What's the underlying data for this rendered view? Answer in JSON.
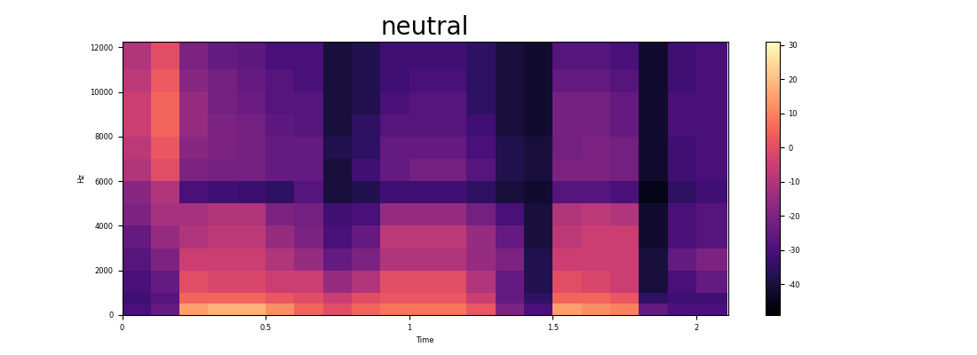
{
  "chart_data": {
    "type": "heatmap",
    "title": "neutral",
    "x_label": "Time",
    "y_label": "Hz",
    "x_edges": [
      0,
      0.1,
      0.2,
      0.3,
      0.4,
      0.5,
      0.6,
      0.7,
      0.8,
      0.9,
      1.0,
      1.1,
      1.2,
      1.3,
      1.4,
      1.5,
      1.6,
      1.7,
      1.8,
      1.9,
      2.0,
      2.11
    ],
    "y_edges": [
      0,
      500,
      1000,
      2000,
      3000,
      4000,
      5000,
      6000,
      7000,
      8000,
      9000,
      10000,
      11000,
      12000,
      12250
    ],
    "cells": [
      [
        -30,
        -25,
        15,
        18,
        18,
        12,
        5,
        0,
        5,
        8,
        8,
        8,
        2,
        -20,
        -30,
        15,
        12,
        10,
        -25,
        -30,
        -30
      ],
      [
        -32,
        -28,
        5,
        5,
        5,
        2,
        0,
        -5,
        0,
        2,
        2,
        2,
        -5,
        -25,
        -35,
        5,
        5,
        2,
        -35,
        -32,
        -32
      ],
      [
        -30,
        -25,
        0,
        -2,
        -2,
        -5,
        -5,
        -15,
        -10,
        0,
        0,
        0,
        -10,
        -25,
        -38,
        0,
        -2,
        -5,
        -40,
        -30,
        -25
      ],
      [
        -28,
        -20,
        -5,
        -5,
        -5,
        -10,
        -15,
        -25,
        -20,
        -10,
        -10,
        -10,
        -15,
        -20,
        -38,
        -5,
        -5,
        -5,
        -40,
        -25,
        -20
      ],
      [
        -25,
        -15,
        -10,
        -8,
        -8,
        -15,
        -20,
        -30,
        -25,
        -8,
        -8,
        -8,
        -15,
        -25,
        -40,
        -8,
        -5,
        -5,
        -42,
        -30,
        -28
      ],
      [
        -20,
        -12,
        -12,
        -10,
        -10,
        -20,
        -22,
        -32,
        -30,
        -15,
        -15,
        -15,
        -22,
        -30,
        -40,
        -10,
        -8,
        -10,
        -42,
        -30,
        -28
      ],
      [
        -18,
        -10,
        -30,
        -32,
        -33,
        -35,
        -28,
        -40,
        -38,
        -32,
        -32,
        -32,
        -35,
        -40,
        -42,
        -28,
        -28,
        -30,
        -45,
        -35,
        -32
      ],
      [
        -10,
        0,
        -20,
        -22,
        -22,
        -25,
        -25,
        -40,
        -32,
        -25,
        -22,
        -22,
        -28,
        -38,
        -40,
        -20,
        -20,
        -22,
        -42,
        -32,
        -30
      ],
      [
        -8,
        2,
        -18,
        -20,
        -22,
        -25,
        -25,
        -38,
        -35,
        -25,
        -25,
        -25,
        -30,
        -38,
        -40,
        -22,
        -20,
        -22,
        -42,
        -32,
        -30
      ],
      [
        -5,
        5,
        -15,
        -20,
        -22,
        -26,
        -28,
        -40,
        -35,
        -28,
        -28,
        -28,
        -32,
        -40,
        -42,
        -22,
        -22,
        -25,
        -42,
        -30,
        -30
      ],
      [
        -5,
        5,
        -15,
        -22,
        -24,
        -28,
        -28,
        -40,
        -38,
        -30,
        -28,
        -28,
        -35,
        -40,
        -42,
        -22,
        -22,
        -25,
        -42,
        -30,
        -30
      ],
      [
        -8,
        3,
        -18,
        -22,
        -25,
        -28,
        -30,
        -40,
        -38,
        -32,
        -30,
        -30,
        -35,
        -40,
        -42,
        -25,
        -25,
        -28,
        -42,
        -32,
        -30
      ],
      [
        -10,
        0,
        -20,
        -25,
        -26,
        -30,
        -30,
        -40,
        -38,
        -32,
        -32,
        -32,
        -35,
        -40,
        -42,
        -28,
        -28,
        -30,
        -42,
        -32,
        -30
      ],
      [
        -10,
        0,
        -20,
        -25,
        -26,
        -30,
        -30,
        -40,
        -38,
        -32,
        -32,
        -32,
        -35,
        -40,
        -42,
        -28,
        -28,
        -30,
        -42,
        -32,
        -30
      ]
    ],
    "color_range": [
      -49,
      31
    ],
    "color_ticks": [
      -40,
      -30,
      -20,
      -10,
      0,
      10,
      20,
      30
    ],
    "xlim": [
      0,
      2.11
    ],
    "xticks": [
      0,
      0.5,
      1,
      1.5,
      2
    ],
    "ylim": [
      0,
      12250
    ],
    "yticks": [
      0,
      2000,
      4000,
      6000,
      8000,
      10000,
      12000
    ]
  }
}
